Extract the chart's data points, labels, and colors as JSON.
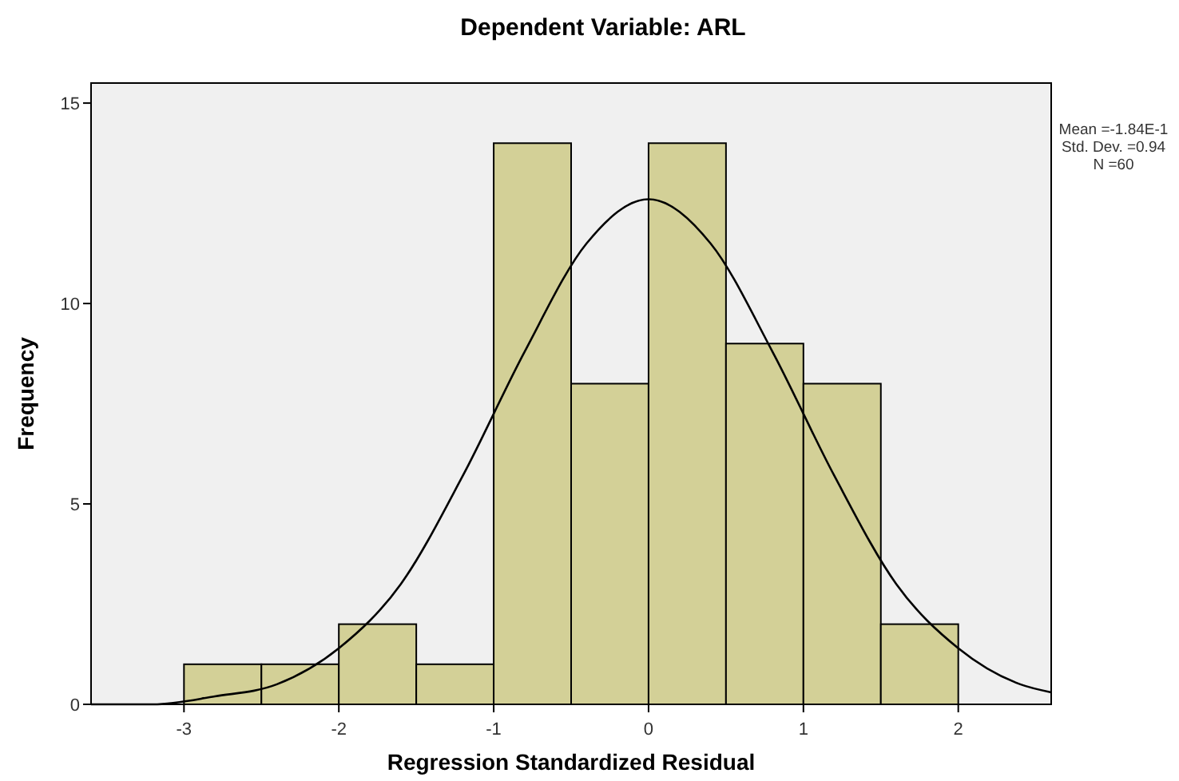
{
  "chart_data": {
    "type": "histogram",
    "title": "Dependent Variable: ARL",
    "xlabel": "Regression Standardized Residual",
    "ylabel": "Frequency",
    "xlim": [
      -3.6,
      2.6
    ],
    "xticks": [
      -3,
      -2,
      -1,
      0,
      1,
      2
    ],
    "ylim": [
      0,
      15.5
    ],
    "yticks": [
      0,
      5,
      10,
      15
    ],
    "series": [
      {
        "color": "#d3d097",
        "bins": [
          -3,
          -2.5,
          -2,
          -1.5,
          -1,
          -0.5,
          0,
          0.5,
          1,
          1.5,
          2
        ],
        "values": [
          1,
          1,
          2,
          1,
          14,
          8,
          14,
          9,
          8,
          2
        ]
      },
      {
        "type": "line",
        "color": "#000000",
        "x": [
          -3.6,
          -3.2,
          -2.8,
          -2.4,
          -2.0,
          -1.6,
          -1.2,
          -0.8,
          -0.4,
          0,
          0.4,
          0.8,
          1.2,
          1.6,
          2.0,
          2.4,
          2.6
        ],
        "values": [
          0.0,
          0.0,
          0.2,
          0.5,
          1.4,
          3.0,
          5.7,
          8.8,
          11.5,
          12.6,
          11.5,
          8.8,
          5.7,
          3.0,
          1.4,
          0.5,
          0.3
        ]
      }
    ],
    "annotations": [
      "Mean =-1.84E-1",
      "Std. Dev. =0.94",
      "N =60"
    ]
  }
}
